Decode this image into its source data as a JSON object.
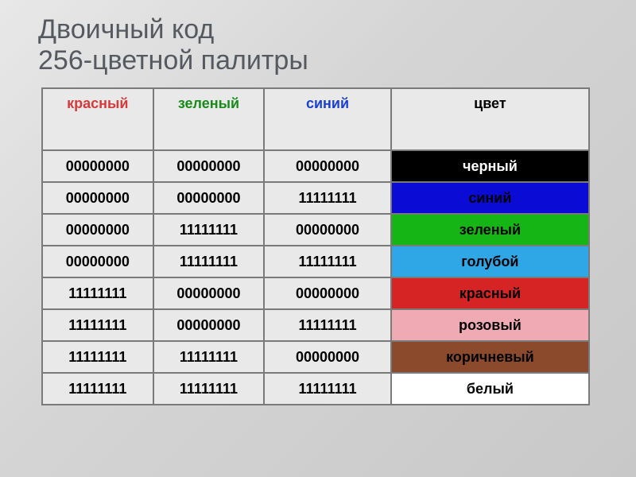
{
  "title_line1": "Двоичный код",
  "title_line2": "256-цветной палитры",
  "columns": {
    "r": {
      "label": "красный",
      "color": "#d63a3a"
    },
    "g": {
      "label": "зеленый",
      "color": "#1a8a1a"
    },
    "b": {
      "label": "синий",
      "color": "#1a3fcf"
    },
    "c": {
      "label": "цвет",
      "color": "#000000"
    }
  },
  "rows": [
    {
      "r": "00000000",
      "g": "00000000",
      "b": "00000000",
      "name": "черный",
      "bg": "#000000",
      "fg": "#ffffff"
    },
    {
      "r": "00000000",
      "g": "00000000",
      "b": "11111111",
      "name": "синий",
      "bg": "#0b0bd6",
      "fg": "#000000"
    },
    {
      "r": "00000000",
      "g": "11111111",
      "b": "00000000",
      "name": "зеленый",
      "bg": "#14b514",
      "fg": "#000000"
    },
    {
      "r": "00000000",
      "g": "11111111",
      "b": "11111111",
      "name": "голубой",
      "bg": "#2fa7e6",
      "fg": "#000000"
    },
    {
      "r": "11111111",
      "g": "00000000",
      "b": "00000000",
      "name": "красный",
      "bg": "#d62424",
      "fg": "#000000"
    },
    {
      "r": "11111111",
      "g": "00000000",
      "b": "11111111",
      "name": "розовый",
      "bg": "#efaab4",
      "fg": "#000000"
    },
    {
      "r": "11111111",
      "g": "11111111",
      "b": "00000000",
      "name": "коричневый",
      "bg": "#8a4a2b",
      "fg": "#000000"
    },
    {
      "r": "11111111",
      "g": "11111111",
      "b": "11111111",
      "name": "белый",
      "bg": "#ffffff",
      "fg": "#000000"
    }
  ],
  "table": {
    "border_color": "#7a7a7a",
    "cell_bg": "#e9e9e9"
  }
}
